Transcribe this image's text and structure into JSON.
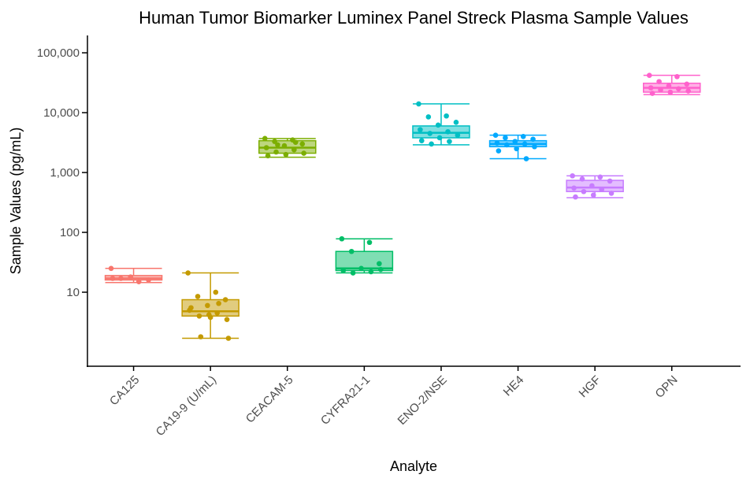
{
  "chart_data": {
    "type": "box",
    "title": "Human Tumor Biomarker Luminex Panel Streck Plasma Sample Values",
    "x_label": "Analyte",
    "y_label": "Sample Values (pg/mL)",
    "log_scale": true,
    "ylim": [
      0.58,
      195000
    ],
    "yticks": [
      {
        "value": 100000,
        "label": "100,000"
      },
      {
        "value": 10000,
        "label": "10,000"
      },
      {
        "value": 1000,
        "label": "1,000"
      },
      100,
      10
    ],
    "categories": [
      "CA125",
      "CA19-9 (U/mL)",
      "CEACAM-5",
      "CYFRA21-1",
      "ENO-2/NSE",
      "HE4",
      "HGF",
      "OPN"
    ],
    "boxes": [
      {
        "color": "#F8766D",
        "low": 14.5,
        "q1": 16,
        "median": 17,
        "q3": 19,
        "high": 25,
        "points": [
          25,
          15,
          17,
          16,
          18,
          17
        ]
      },
      {
        "color": "#C49A00",
        "low": 1.7,
        "q1": 4,
        "median": 4.8,
        "q3": 7.5,
        "high": 21,
        "points": [
          21,
          10,
          8.5,
          7.5,
          6,
          5,
          4.5,
          4,
          3.5,
          4.2,
          5.5,
          6.5,
          1.8,
          1.7,
          3.8
        ]
      },
      {
        "color": "#7CAE00",
        "low": 1800,
        "q1": 2100,
        "median": 2600,
        "q3": 3400,
        "high": 3700,
        "points": [
          3700,
          3500,
          3300,
          3000,
          2800,
          2600,
          2400,
          2200,
          2100,
          2000,
          1900,
          3200,
          2900
        ]
      },
      {
        "color": "#00BE67",
        "low": 21,
        "q1": 23,
        "median": 25,
        "q3": 48,
        "high": 78,
        "points": [
          78,
          68,
          48,
          30,
          25,
          23,
          22,
          21,
          24
        ]
      },
      {
        "color": "#00BFC4",
        "low": 2900,
        "q1": 3800,
        "median": 4600,
        "q3": 6000,
        "high": 14000,
        "points": [
          14000,
          8800,
          8500,
          6900,
          6200,
          5200,
          4800,
          4500,
          4200,
          3800,
          3400,
          3300,
          3000
        ]
      },
      {
        "color": "#00A9FF",
        "low": 1700,
        "q1": 2700,
        "median": 3000,
        "q3": 3400,
        "high": 4200,
        "points": [
          4200,
          4000,
          3800,
          3600,
          3300,
          3100,
          3000,
          2900,
          2700,
          2500,
          2300,
          1700
        ]
      },
      {
        "color": "#C77CFF",
        "low": 380,
        "q1": 480,
        "median": 560,
        "q3": 740,
        "high": 880,
        "points": [
          880,
          840,
          780,
          720,
          600,
          550,
          520,
          480,
          450,
          420,
          390
        ]
      },
      {
        "color": "#FF61CC",
        "low": 20000,
        "q1": 22000,
        "median": 26000,
        "q3": 31000,
        "high": 42000,
        "points": [
          42000,
          40000,
          33000,
          30000,
          28000,
          26000,
          25000,
          24000,
          23000,
          22000,
          21000
        ]
      }
    ]
  }
}
